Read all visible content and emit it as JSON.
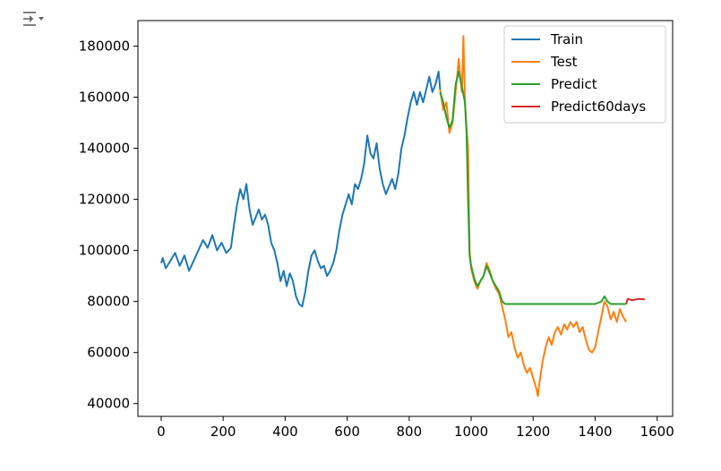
{
  "toolbar": {
    "output_icon": "output-toggle-icon"
  },
  "chart_data": {
    "type": "line",
    "title": "",
    "xlabel": "",
    "ylabel": "",
    "xlim": [
      -75,
      1650
    ],
    "ylim": [
      35000,
      190000
    ],
    "x_ticks": [
      0,
      200,
      400,
      600,
      800,
      1000,
      1200,
      1400,
      1600
    ],
    "y_ticks": [
      40000,
      60000,
      80000,
      100000,
      120000,
      140000,
      160000,
      180000
    ],
    "x_tick_labels": [
      "0",
      "200",
      "400",
      "600",
      "800",
      "1000",
      "1200",
      "1400",
      "1600"
    ],
    "y_tick_labels": [
      "40000",
      "60000",
      "80000",
      "100000",
      "120000",
      "140000",
      "160000",
      "180000"
    ],
    "grid": false,
    "legend_position": "top-right",
    "series": [
      {
        "name": "Train",
        "color": "#1f77b4",
        "points": [
          [
            0,
            95000
          ],
          [
            5,
            97000
          ],
          [
            15,
            93000
          ],
          [
            30,
            96000
          ],
          [
            45,
            99000
          ],
          [
            60,
            94000
          ],
          [
            75,
            98000
          ],
          [
            90,
            92000
          ],
          [
            105,
            96000
          ],
          [
            120,
            100000
          ],
          [
            135,
            104000
          ],
          [
            150,
            101000
          ],
          [
            165,
            106000
          ],
          [
            180,
            100000
          ],
          [
            195,
            103000
          ],
          [
            210,
            99000
          ],
          [
            225,
            101000
          ],
          [
            235,
            110000
          ],
          [
            245,
            118000
          ],
          [
            255,
            124000
          ],
          [
            265,
            120000
          ],
          [
            275,
            126000
          ],
          [
            285,
            116000
          ],
          [
            295,
            110000
          ],
          [
            305,
            113000
          ],
          [
            315,
            116000
          ],
          [
            325,
            112000
          ],
          [
            335,
            114000
          ],
          [
            345,
            110000
          ],
          [
            355,
            103000
          ],
          [
            365,
            100000
          ],
          [
            375,
            95000
          ],
          [
            385,
            88000
          ],
          [
            395,
            92000
          ],
          [
            405,
            86000
          ],
          [
            415,
            91000
          ],
          [
            425,
            88000
          ],
          [
            435,
            82000
          ],
          [
            445,
            79000
          ],
          [
            455,
            78000
          ],
          [
            465,
            84000
          ],
          [
            475,
            92000
          ],
          [
            485,
            98000
          ],
          [
            495,
            100000
          ],
          [
            505,
            96000
          ],
          [
            515,
            93000
          ],
          [
            525,
            94000
          ],
          [
            535,
            90000
          ],
          [
            545,
            92000
          ],
          [
            555,
            95000
          ],
          [
            565,
            100000
          ],
          [
            575,
            108000
          ],
          [
            585,
            114000
          ],
          [
            595,
            118000
          ],
          [
            605,
            122000
          ],
          [
            615,
            118000
          ],
          [
            625,
            126000
          ],
          [
            635,
            124000
          ],
          [
            645,
            128000
          ],
          [
            655,
            134000
          ],
          [
            665,
            145000
          ],
          [
            675,
            138000
          ],
          [
            685,
            136000
          ],
          [
            695,
            142000
          ],
          [
            705,
            132000
          ],
          [
            715,
            126000
          ],
          [
            725,
            122000
          ],
          [
            735,
            125000
          ],
          [
            745,
            128000
          ],
          [
            755,
            124000
          ],
          [
            765,
            130000
          ],
          [
            775,
            140000
          ],
          [
            785,
            145000
          ],
          [
            795,
            152000
          ],
          [
            805,
            158000
          ],
          [
            815,
            162000
          ],
          [
            825,
            157000
          ],
          [
            835,
            162000
          ],
          [
            845,
            158000
          ],
          [
            855,
            163000
          ],
          [
            865,
            168000
          ],
          [
            875,
            162000
          ],
          [
            885,
            165000
          ],
          [
            895,
            170000
          ],
          [
            900,
            163000
          ]
        ]
      },
      {
        "name": "Test",
        "color": "#ff7f0e",
        "points": [
          [
            900,
            163000
          ],
          [
            910,
            155000
          ],
          [
            920,
            158000
          ],
          [
            930,
            146000
          ],
          [
            940,
            150000
          ],
          [
            950,
            162000
          ],
          [
            960,
            175000
          ],
          [
            965,
            168000
          ],
          [
            970,
            162000
          ],
          [
            975,
            184000
          ],
          [
            980,
            158000
          ],
          [
            985,
            148000
          ],
          [
            990,
            140000
          ],
          [
            995,
            100000
          ],
          [
            1000,
            93000
          ],
          [
            1010,
            88000
          ],
          [
            1020,
            85000
          ],
          [
            1030,
            88000
          ],
          [
            1040,
            90000
          ],
          [
            1050,
            95000
          ],
          [
            1060,
            92000
          ],
          [
            1070,
            88000
          ],
          [
            1080,
            85000
          ],
          [
            1090,
            83000
          ],
          [
            1100,
            78000
          ],
          [
            1110,
            73000
          ],
          [
            1120,
            66000
          ],
          [
            1130,
            68000
          ],
          [
            1140,
            62000
          ],
          [
            1150,
            58000
          ],
          [
            1160,
            60000
          ],
          [
            1170,
            55000
          ],
          [
            1180,
            52000
          ],
          [
            1190,
            54000
          ],
          [
            1200,
            50000
          ],
          [
            1210,
            46000
          ],
          [
            1215,
            43000
          ],
          [
            1220,
            48000
          ],
          [
            1230,
            56000
          ],
          [
            1240,
            62000
          ],
          [
            1250,
            66000
          ],
          [
            1260,
            63000
          ],
          [
            1270,
            68000
          ],
          [
            1280,
            70000
          ],
          [
            1290,
            67000
          ],
          [
            1300,
            71000
          ],
          [
            1310,
            69000
          ],
          [
            1320,
            72000
          ],
          [
            1330,
            70000
          ],
          [
            1340,
            72000
          ],
          [
            1350,
            68000
          ],
          [
            1360,
            70000
          ],
          [
            1370,
            65000
          ],
          [
            1380,
            61000
          ],
          [
            1390,
            60000
          ],
          [
            1400,
            62000
          ],
          [
            1410,
            68000
          ],
          [
            1420,
            74000
          ],
          [
            1430,
            80000
          ],
          [
            1440,
            78000
          ],
          [
            1450,
            73000
          ],
          [
            1460,
            76000
          ],
          [
            1470,
            72000
          ],
          [
            1480,
            77000
          ],
          [
            1490,
            74000
          ],
          [
            1500,
            72000
          ]
        ]
      },
      {
        "name": "Predict",
        "color": "#2ca02c",
        "points": [
          [
            900,
            162000
          ],
          [
            910,
            158000
          ],
          [
            920,
            152000
          ],
          [
            930,
            148000
          ],
          [
            940,
            151000
          ],
          [
            950,
            165000
          ],
          [
            960,
            170000
          ],
          [
            970,
            164000
          ],
          [
            980,
            158000
          ],
          [
            985,
            146000
          ],
          [
            990,
            120000
          ],
          [
            995,
            98000
          ],
          [
            1000,
            94000
          ],
          [
            1010,
            89000
          ],
          [
            1020,
            86000
          ],
          [
            1030,
            88000
          ],
          [
            1040,
            90000
          ],
          [
            1050,
            94000
          ],
          [
            1060,
            91000
          ],
          [
            1070,
            88000
          ],
          [
            1080,
            86000
          ],
          [
            1090,
            84000
          ],
          [
            1100,
            80000
          ],
          [
            1110,
            79000
          ],
          [
            1200,
            79000
          ],
          [
            1300,
            79000
          ],
          [
            1400,
            79000
          ],
          [
            1420,
            80000
          ],
          [
            1430,
            82000
          ],
          [
            1440,
            80000
          ],
          [
            1450,
            79000
          ],
          [
            1500,
            79000
          ]
        ]
      },
      {
        "name": "Predict60days",
        "color": "#d62728",
        "points": [
          [
            1500,
            79000
          ],
          [
            1505,
            81000
          ],
          [
            1520,
            80500
          ],
          [
            1540,
            81000
          ],
          [
            1560,
            80800
          ]
        ]
      }
    ]
  }
}
